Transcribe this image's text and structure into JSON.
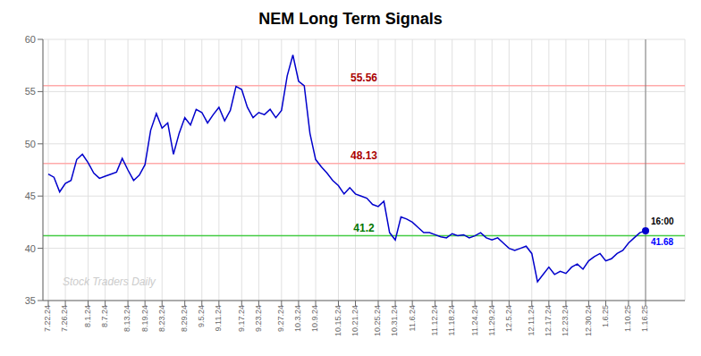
{
  "chart_data": {
    "type": "line",
    "title": "NEM Long Term Signals",
    "categories": [
      "7.22.24",
      null,
      null,
      "7.26.24",
      null,
      null,
      null,
      "8.1.24",
      null,
      null,
      "8.7.24",
      null,
      null,
      null,
      "8.13.24",
      null,
      null,
      "8.19.24",
      null,
      null,
      "8.23.24",
      null,
      null,
      null,
      "8.29.24",
      null,
      null,
      "9.5.24",
      null,
      null,
      "9.11.24",
      null,
      null,
      null,
      "9.17.24",
      null,
      null,
      "9.23.24",
      null,
      null,
      null,
      "9.27.24",
      null,
      null,
      "10.3.24",
      null,
      null,
      "10.9.24",
      null,
      null,
      null,
      "10.15.24",
      null,
      null,
      "10.21.24",
      null,
      null,
      null,
      "10.25.24",
      null,
      null,
      "10.31.24",
      null,
      null,
      "11.6.24",
      null,
      null,
      null,
      "11.12.24",
      null,
      null,
      "11.18.24",
      null,
      null,
      null,
      "11.24.24",
      null,
      null,
      "11.29.24",
      null,
      null,
      "12.5.24",
      null,
      null,
      null,
      "12.11.24",
      null,
      null,
      "12.17.24",
      null,
      null,
      "12.23.24",
      null,
      null,
      null,
      "12.30.24",
      null,
      null,
      "1.6.25",
      null,
      null,
      null,
      "1.10.25",
      null,
      null,
      "1.16.25"
    ],
    "values": [
      47.1,
      46.8,
      45.4,
      46.2,
      46.5,
      48.5,
      49.0,
      48.2,
      47.2,
      46.7,
      46.9,
      47.1,
      47.3,
      48.6,
      47.5,
      46.5,
      47.0,
      48.0,
      51.3,
      52.9,
      51.5,
      52.0,
      49.0,
      51.0,
      52.5,
      51.8,
      53.3,
      53.0,
      52.0,
      52.8,
      53.5,
      52.2,
      53.2,
      55.5,
      55.2,
      53.5,
      52.5,
      53.0,
      52.8,
      53.3,
      52.5,
      53.2,
      56.5,
      58.5,
      56.0,
      55.56,
      51.0,
      48.5,
      47.8,
      47.2,
      46.5,
      46.0,
      45.2,
      45.8,
      45.2,
      45.0,
      44.8,
      44.2,
      44.0,
      44.5,
      41.5,
      40.8,
      43.0,
      42.8,
      42.5,
      42.0,
      41.5,
      41.5,
      41.3,
      41.1,
      41.0,
      41.4,
      41.2,
      41.3,
      41.0,
      41.2,
      41.5,
      41.0,
      40.8,
      41.0,
      40.5,
      40.0,
      39.8,
      40.0,
      40.2,
      39.5,
      36.8,
      37.5,
      38.2,
      37.5,
      37.8,
      37.6,
      38.2,
      38.5,
      38.0,
      38.8,
      39.2,
      39.5,
      38.8,
      39.0,
      39.5,
      39.8,
      40.5,
      41.0,
      41.5,
      41.68
    ],
    "color": "#0000cc",
    "ylim": [
      35,
      60
    ],
    "yticks": [
      35,
      40,
      45,
      50,
      55,
      60
    ],
    "grid": true,
    "reference_lines": [
      {
        "y": 41.2,
        "label": "41.2",
        "color": "#44cc44",
        "label_color": "#007700"
      },
      {
        "y": 48.13,
        "label": "48.13",
        "color": "#ffaaaa",
        "label_color": "#aa0000"
      },
      {
        "y": 55.56,
        "label": "55.56",
        "color": "#ffaaaa",
        "label_color": "#aa0000"
      }
    ],
    "last_point_labels": [
      {
        "text": "16:00",
        "color": "#000000"
      },
      {
        "text": "41.68",
        "color": "#0000ff"
      }
    ],
    "watermark": {
      "text": "Stock Traders Daily",
      "color": "#cccccc"
    }
  }
}
